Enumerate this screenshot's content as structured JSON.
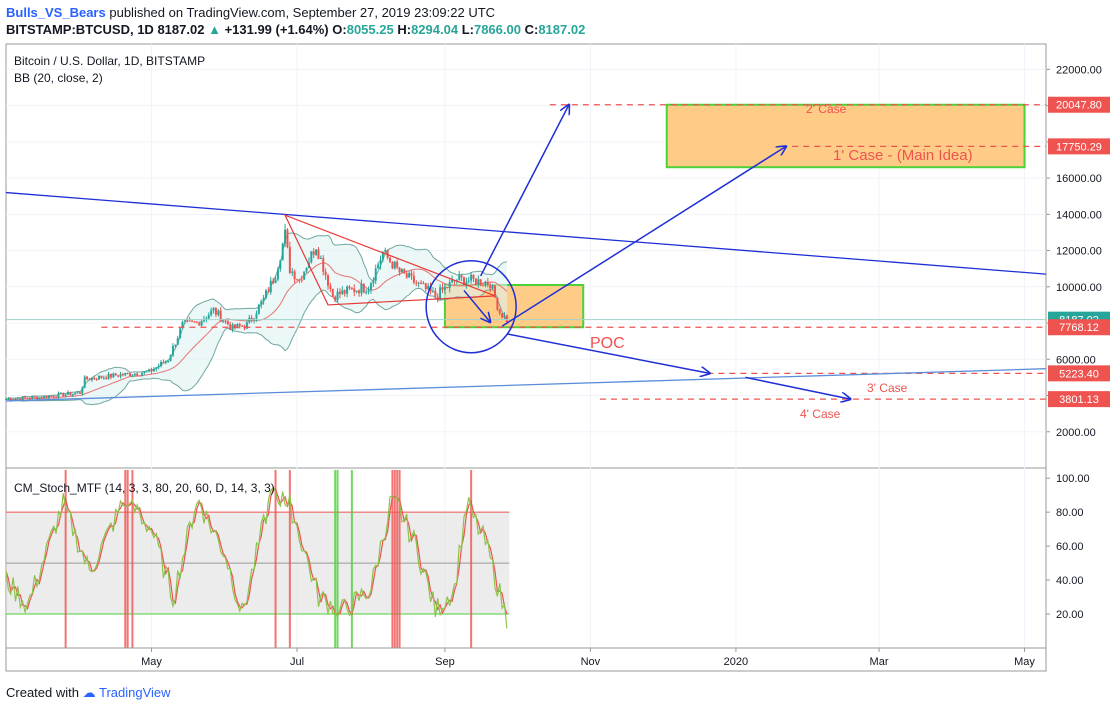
{
  "header": {
    "author": "Bulls_VS_Bears",
    "published_text": "published on TradingView.com, September 27, 2019 23:09:22 UTC",
    "symbol": "BITSTAMP:BTCUSD, 1D",
    "last": "8187.02",
    "change": "+131.99 (+1.64%)",
    "o_label": "O:",
    "o": "8055.25",
    "h_label": "H:",
    "h": "8294.04",
    "l_label": "L:",
    "l": "7866.00",
    "c_label": "C:",
    "c": "8187.02"
  },
  "legend": {
    "title": "Bitcoin / U.S. Dollar, 1D, BITSTAMP",
    "indicator": "BB (20, close, 2)",
    "oscillator": "CM_Stoch_MTF (14, 3, 3, 80, 20, 60, D, 14, 3, 3)"
  },
  "footer": {
    "created": "Created with",
    "brand": "TradingView"
  },
  "annotations": {
    "case1": "1' Case - (Main Idea)",
    "case2": "2' Case",
    "case3": "3' Case",
    "case4": "4' Case",
    "poc": "POC"
  },
  "price_badges": [
    {
      "label": "20047.80",
      "value": 20047.8,
      "color": "#ef5350"
    },
    {
      "label": "17750.29",
      "value": 17750.29,
      "color": "#ef5350"
    },
    {
      "label": "8187.02",
      "value": 8187.02,
      "color": "#26a69a"
    },
    {
      "label": "7768.12",
      "value": 7768.12,
      "color": "#ef5350"
    },
    {
      "label": "5223.40",
      "value": 5223.4,
      "color": "#ef5350"
    },
    {
      "label": "3801.13",
      "value": 3801.13,
      "color": "#ef5350"
    }
  ],
  "colors": {
    "up": "#26a69a",
    "down": "#ef5350",
    "trend": "#1f2fd6",
    "zone_fill": "#ffc67a",
    "zone_border": "#4cd137",
    "band": "#6fa8a0"
  },
  "chart_data": [
    {
      "type": "candlestick",
      "title": "Bitcoin / U.S. Dollar, 1D, BITSTAMP",
      "x_ticks": [
        "May",
        "Jul",
        "Sep",
        "Nov",
        "2020",
        "Mar",
        "May"
      ],
      "y_ticks": [
        2000,
        4000,
        6000,
        8000,
        10000,
        12000,
        14000,
        16000,
        18000,
        20000,
        22000
      ],
      "y_tick_labels": [
        "2000.00",
        "4000.00",
        "6000.00",
        "8000.00",
        "10000.00",
        "12000.00",
        "14000.00",
        "16000.00",
        "18000.00",
        "20000.00",
        "22000.00"
      ],
      "ylim": [
        0,
        23400
      ],
      "date_range": [
        "2019-03-01",
        "2020-05-10"
      ],
      "close_series": [
        [
          "2019-03-01",
          3810
        ],
        [
          "2019-03-15",
          3900
        ],
        [
          "2019-04-01",
          4150
        ],
        [
          "2019-04-03",
          4900
        ],
        [
          "2019-04-15",
          5100
        ],
        [
          "2019-04-30",
          5300
        ],
        [
          "2019-05-08",
          6000
        ],
        [
          "2019-05-14",
          7900
        ],
        [
          "2019-05-20",
          8000
        ],
        [
          "2019-05-27",
          8700
        ],
        [
          "2019-06-04",
          7700
        ],
        [
          "2019-06-10",
          7900
        ],
        [
          "2019-06-17",
          9300
        ],
        [
          "2019-06-22",
          10700
        ],
        [
          "2019-06-26",
          12900
        ],
        [
          "2019-06-28",
          11000
        ],
        [
          "2019-07-02",
          10400
        ],
        [
          "2019-07-09",
          12300
        ],
        [
          "2019-07-16",
          9500
        ],
        [
          "2019-07-23",
          9800
        ],
        [
          "2019-07-31",
          10000
        ],
        [
          "2019-08-06",
          11900
        ],
        [
          "2019-08-13",
          10800
        ],
        [
          "2019-08-20",
          10200
        ],
        [
          "2019-08-28",
          9500
        ],
        [
          "2019-09-06",
          10400
        ],
        [
          "2019-09-13",
          10350
        ],
        [
          "2019-09-20",
          10200
        ],
        [
          "2019-09-24",
          8600
        ],
        [
          "2019-09-27",
          8187
        ]
      ],
      "zones": [
        {
          "name": "target-zone",
          "from": "2019-12-03",
          "to": "2020-05-01",
          "low": 16600,
          "high": 20047.8
        },
        {
          "name": "poc-zone",
          "from": "2019-09-01",
          "to": "2019-10-29",
          "low": 7768.12,
          "high": 10100
        }
      ],
      "levels": [
        20047.8,
        17750.29,
        7768.12,
        5223.4,
        3801.13
      ]
    },
    {
      "type": "line",
      "title": "CM_Stoch_MTF (14, 3, 3, 80, 20, 60, D, 14, 3, 3)",
      "y_ticks": [
        20,
        40,
        60,
        80,
        100
      ],
      "y_tick_labels": [
        "20.00",
        "40.00",
        "60.00",
        "80.00",
        "100.00"
      ],
      "ylim": [
        0,
        106
      ],
      "bands": [
        20,
        50,
        80
      ],
      "series": [
        {
          "values": [
            [
              "2019-03-01",
              40
            ],
            [
              "2019-03-10",
              25
            ],
            [
              "2019-03-25",
              85
            ],
            [
              "2019-04-05",
              45
            ],
            [
              "2019-04-20",
              88
            ],
            [
              "2019-05-01",
              70
            ],
            [
              "2019-05-10",
              30
            ],
            [
              "2019-05-20",
              88
            ],
            [
              "2019-06-01",
              55
            ],
            [
              "2019-06-08",
              20
            ],
            [
              "2019-06-20",
              90
            ],
            [
              "2019-06-28",
              85
            ],
            [
              "2019-07-10",
              30
            ],
            [
              "2019-07-20",
              22
            ],
            [
              "2019-08-01",
              35
            ],
            [
              "2019-08-10",
              90
            ],
            [
              "2019-08-20",
              60
            ],
            [
              "2019-08-28",
              22
            ],
            [
              "2019-09-05",
              35
            ],
            [
              "2019-09-10",
              85
            ],
            [
              "2019-09-18",
              62
            ],
            [
              "2019-09-27",
              17
            ]
          ]
        }
      ]
    }
  ]
}
